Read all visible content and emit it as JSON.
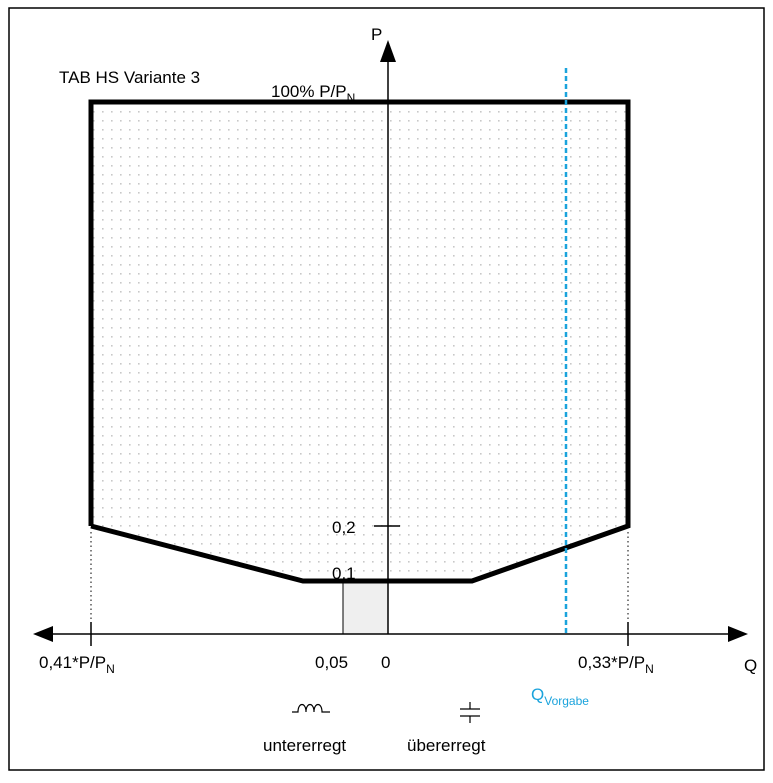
{
  "diagram": {
    "title": "TAB HS Variante 3",
    "axis_p": "P",
    "axis_q": "Q",
    "label_100": {
      "main": "100% P/P",
      "sub": "N"
    },
    "label_02": "0,2",
    "label_01": "0,1",
    "label_left": {
      "main": "0,41*P/P",
      "sub": "N"
    },
    "label_005": "0,05",
    "label_0": "0",
    "label_right": {
      "main": "0,33*P/P",
      "sub": "N"
    },
    "label_qvorgabe": {
      "main": "Q",
      "sub": "Vorgabe"
    },
    "label_untererregt": "untererregt",
    "label_uebererregt": "übererregt",
    "inductor_icon": "inductor-symbol",
    "capacitor_icon": "capacitor-symbol",
    "colors": {
      "outline": "#000000",
      "dots": "#c8c8c8",
      "small_box": "#efefef",
      "qvorgabe": "#1aa3dc",
      "frame": "#000000"
    }
  }
}
